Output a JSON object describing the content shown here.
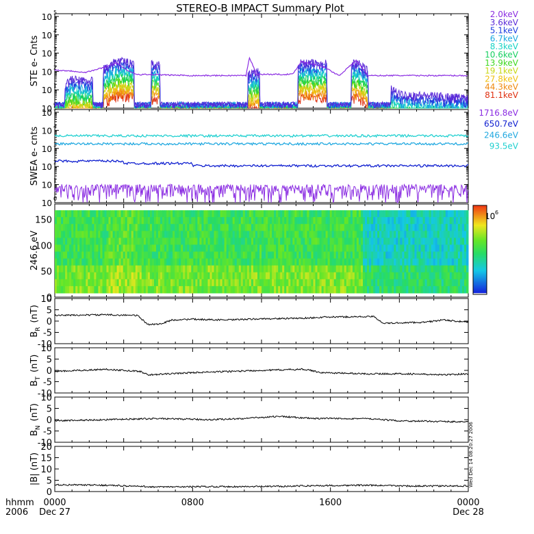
{
  "title": "STEREO-B IMPACT Summary Plot",
  "time_axis": {
    "label_row1": "hhmm",
    "label_row2": "2006",
    "ticks": [
      {
        "hhmm": "0000",
        "date": "Dec 27",
        "hour": 0
      },
      {
        "hhmm": "0800",
        "date": "",
        "hour": 8
      },
      {
        "hhmm": "1600",
        "date": "",
        "hour": 16
      },
      {
        "hhmm": "0000",
        "date": "Dec 28",
        "hour": 24
      }
    ]
  },
  "side_stamp": "Wed Dec 14 08:20:27 2006",
  "colorbar": {
    "label": "10",
    "label_exp": "6",
    "scale": "log"
  },
  "panels": [
    {
      "id": "ste",
      "ylabel": "STE e- Cnts",
      "scale": "log",
      "ytick_exponents": [
        0,
        1,
        2,
        3,
        4,
        5
      ]
    },
    {
      "id": "swea",
      "ylabel": "SWEA e- cnts",
      "scale": "log",
      "ytick_exponents": [
        0,
        1,
        2,
        3,
        4,
        5
      ]
    },
    {
      "id": "pad",
      "ylabel": "246.6 eV",
      "scale": "linear",
      "yticks": [
        "0",
        "50",
        "100",
        "150"
      ],
      "ylim": [
        0,
        180
      ]
    },
    {
      "id": "br",
      "ylabel_main": "B",
      "ylabel_sub": "R",
      "ylabel_unit": "(nT)",
      "yticks": [
        "10",
        "5",
        "0",
        "-5",
        "-10"
      ],
      "ylim": [
        -10,
        10
      ]
    },
    {
      "id": "bt",
      "ylabel_main": "B",
      "ylabel_sub": "T",
      "ylabel_unit": "(nT)",
      "yticks": [
        "10",
        "5",
        "0",
        "-5",
        "-10"
      ],
      "ylim": [
        -10,
        10
      ]
    },
    {
      "id": "bn",
      "ylabel_main": "B",
      "ylabel_sub": "N",
      "ylabel_unit": "(nT)",
      "yticks": [
        "10",
        "5",
        "0",
        "-5",
        "-10"
      ],
      "ylim": [
        -10,
        10
      ]
    },
    {
      "id": "bmag",
      "ylabel": "|B| (nT)",
      "yticks": [
        "20",
        "15",
        "10",
        "5",
        "0"
      ],
      "ylim": [
        0,
        20
      ]
    }
  ],
  "ste_legend": [
    {
      "label": "2.0keV",
      "color": "#8a2be2"
    },
    {
      "label": "3.6keV",
      "color": "#5a2ad8"
    },
    {
      "label": "5.1keV",
      "color": "#2040e0"
    },
    {
      "label": "6.7keV",
      "color": "#1aa8e0"
    },
    {
      "label": "8.3keV",
      "color": "#18d4c4"
    },
    {
      "label": "10.6keV",
      "color": "#18d060"
    },
    {
      "label": "13.9keV",
      "color": "#40d820"
    },
    {
      "label": "19.1keV",
      "color": "#c8d818"
    },
    {
      "label": "27.8keV",
      "color": "#f0c010"
    },
    {
      "label": "44.3keV",
      "color": "#f08a10"
    },
    {
      "label": "81.1keV",
      "color": "#e03010"
    }
  ],
  "swea_legend": [
    {
      "label": "1716.8eV",
      "color": "#8a2be2"
    },
    {
      "label": "650.7eV",
      "color": "#1020d0"
    },
    {
      "label": "246.6eV",
      "color": "#20a8e0"
    },
    {
      "label": "93.5eV",
      "color": "#20d0d0"
    }
  ],
  "chart_data": [
    {
      "type": "line",
      "title": "STEREO-B IMPACT Summary Plot",
      "ylabel": "STE e- Cnts",
      "yscale": "log",
      "ylim": [
        1,
        100000
      ],
      "x_unit": "hours since 0000 Dec 27",
      "xlim": [
        0,
        24
      ],
      "series": [
        {
          "name": "2.0keV",
          "baseline": 60,
          "points": [
            [
              0.0,
              120
            ],
            [
              0.8,
              110
            ],
            [
              1.8,
              90
            ],
            [
              2.8,
              160
            ],
            [
              3.6,
              300
            ],
            [
              4.2,
              110
            ],
            [
              4.8,
              70
            ],
            [
              8.0,
              60
            ],
            [
              11.1,
              60
            ],
            [
              11.3,
              600
            ],
            [
              11.7,
              70
            ],
            [
              13.8,
              70
            ],
            [
              14.3,
              350
            ],
            [
              15.5,
              200
            ],
            [
              16.5,
              60
            ],
            [
              17.5,
              400
            ],
            [
              18.2,
              60
            ],
            [
              24.0,
              60
            ]
          ]
        },
        {
          "name": "5.1keV",
          "points": [
            [
              0.5,
              10
            ],
            [
              1.0,
              20
            ],
            [
              2.0,
              15
            ],
            [
              3.0,
              100
            ],
            [
              3.6,
              200
            ],
            [
              11.3,
              40
            ],
            [
              14.3,
              150
            ],
            [
              17.6,
              150
            ],
            [
              20.0,
              3
            ],
            [
              24.0,
              2
            ]
          ]
        },
        {
          "name": "81.1keV",
          "points": [
            [
              0.6,
              2
            ],
            [
              1.5,
              3
            ],
            [
              3.2,
              5
            ],
            [
              5.8,
              4
            ],
            [
              11.3,
              3
            ],
            [
              14.5,
              5
            ],
            [
              17.7,
              5
            ],
            [
              24.0,
              1
            ]
          ]
        }
      ]
    },
    {
      "type": "line",
      "ylabel": "SWEA e- cnts",
      "yscale": "log",
      "ylim": [
        1,
        100000
      ],
      "series": [
        {
          "name": "93.5eV",
          "values_approx": 5000
        },
        {
          "name": "246.6eV",
          "values_approx": 1800
        },
        {
          "name": "650.7eV",
          "values_approx": 150
        },
        {
          "name": "1716.8eV",
          "values_approx": 3
        }
      ]
    },
    {
      "type": "heatmap",
      "ylabel": "246.6 eV",
      "ylim": [
        0,
        180
      ],
      "colorbar_label": "10^6"
    },
    {
      "type": "line",
      "ylabel": "B_R (nT)",
      "ylim": [
        -10,
        10
      ],
      "points": [
        [
          0.0,
          2.5
        ],
        [
          3.0,
          2.8
        ],
        [
          4.8,
          2.5
        ],
        [
          5.4,
          -1.5
        ],
        [
          6.2,
          -1.2
        ],
        [
          6.8,
          0.5
        ],
        [
          8.0,
          0.8
        ],
        [
          10.0,
          0.5
        ],
        [
          12.0,
          1.0
        ],
        [
          14.0,
          1.2
        ],
        [
          16.0,
          1.8
        ],
        [
          18.5,
          2.0
        ],
        [
          19.1,
          -1.0
        ],
        [
          21.5,
          -0.5
        ],
        [
          22.5,
          0.5
        ],
        [
          24.0,
          -0.5
        ]
      ]
    },
    {
      "type": "line",
      "ylabel": "B_T (nT)",
      "ylim": [
        -10,
        10
      ],
      "points": [
        [
          0.0,
          -0.5
        ],
        [
          3.0,
          0.5
        ],
        [
          5.0,
          -0.5
        ],
        [
          5.4,
          -2.0
        ],
        [
          8.0,
          -1.0
        ],
        [
          12.0,
          0.0
        ],
        [
          14.5,
          0.5
        ],
        [
          15.5,
          -1.0
        ],
        [
          18.0,
          -1.5
        ],
        [
          20.5,
          -1.5
        ],
        [
          22.5,
          -2.0
        ],
        [
          24.0,
          -1.5
        ]
      ]
    },
    {
      "type": "line",
      "ylabel": "B_N (nT)",
      "ylim": [
        -10,
        10
      ],
      "points": [
        [
          0.0,
          -0.5
        ],
        [
          3.0,
          0.0
        ],
        [
          6.0,
          0.5
        ],
        [
          9.0,
          0.0
        ],
        [
          11.0,
          0.5
        ],
        [
          13.0,
          1.5
        ],
        [
          15.0,
          0.5
        ],
        [
          18.0,
          0.5
        ],
        [
          20.0,
          -0.5
        ],
        [
          24.0,
          -1.0
        ]
      ]
    },
    {
      "type": "line",
      "ylabel": "|B| (nT)",
      "ylim": [
        0,
        20
      ],
      "points": [
        [
          0.0,
          3.0
        ],
        [
          3.0,
          2.8
        ],
        [
          6.0,
          2.0
        ],
        [
          9.0,
          2.2
        ],
        [
          12.0,
          2.2
        ],
        [
          15.0,
          2.6
        ],
        [
          18.0,
          2.8
        ],
        [
          21.0,
          2.4
        ],
        [
          24.0,
          2.5
        ]
      ]
    }
  ]
}
